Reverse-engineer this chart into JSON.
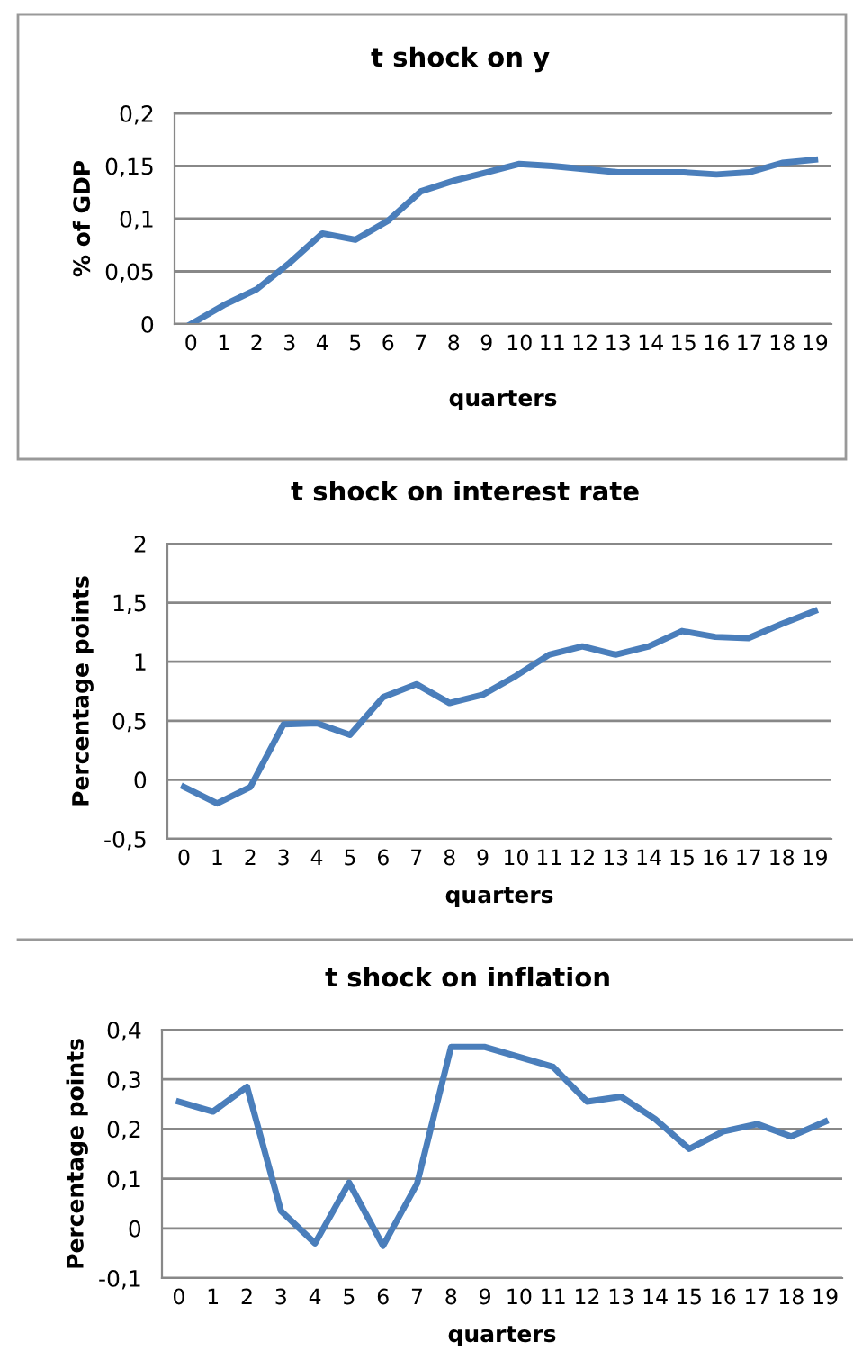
{
  "chart_data": [
    {
      "type": "line",
      "title": "t shock on y",
      "xlabel": "quarters",
      "ylabel": "% of GDP",
      "categories": [
        "0",
        "1",
        "2",
        "3",
        "4",
        "5",
        "6",
        "7",
        "8",
        "9",
        "10",
        "11",
        "12",
        "13",
        "14",
        "15",
        "16",
        "17",
        "18",
        "19"
      ],
      "series": [
        {
          "color": "#4a7ebb",
          "values": [
            0,
            0.018,
            0.033,
            0.058,
            0.086,
            0.08,
            0.098,
            0.126,
            0.136,
            0.144,
            0.152,
            0.15,
            0.147,
            0.144,
            0.144,
            0.144,
            0.142,
            0.144,
            0.153,
            0.156
          ]
        }
      ],
      "ylim": [
        0,
        0.2
      ],
      "yticks": [
        0,
        {
          "value": 0.05,
          "label": "0,05"
        },
        {
          "value": 0.1,
          "label": "0,1"
        },
        {
          "value": 0.15,
          "label": "0,15"
        },
        {
          "value": 0.2,
          "label": "0,2"
        }
      ],
      "grid": "y",
      "marker": "none",
      "line_style": "solid"
    },
    {
      "type": "line",
      "title": "t shock on interest rate",
      "xlabel": "quarters",
      "ylabel": "Percentage points",
      "categories": [
        "0",
        "1",
        "2",
        "3",
        "4",
        "5",
        "6",
        "7",
        "8",
        "9",
        "10",
        "11",
        "12",
        "13",
        "14",
        "15",
        "16",
        "17",
        "18",
        "19"
      ],
      "series": [
        {
          "color": "#4a7ebb",
          "values": [
            -0.06,
            -0.2,
            -0.06,
            0.47,
            0.48,
            0.38,
            0.7,
            0.81,
            0.65,
            0.72,
            0.88,
            1.06,
            1.13,
            1.06,
            1.13,
            1.26,
            1.21,
            1.2,
            1.32,
            1.43
          ]
        }
      ],
      "ylim": [
        -0.5,
        2
      ],
      "yticks": [
        {
          "value": -0.5,
          "label": "-0,5"
        },
        0,
        {
          "value": 0.5,
          "label": "0,5"
        },
        1,
        {
          "value": 1.5,
          "label": "1,5"
        },
        2
      ],
      "grid": "y",
      "marker": "none",
      "line_style": "solid"
    },
    {
      "type": "line",
      "title": "t shock on inflation",
      "xlabel": "quarters",
      "ylabel": "Percentage points",
      "categories": [
        "0",
        "1",
        "2",
        "3",
        "4",
        "5",
        "6",
        "7",
        "8",
        "9",
        "10",
        "11",
        "12",
        "13",
        "14",
        "15",
        "16",
        "17",
        "18",
        "19"
      ],
      "series": [
        {
          "color": "#4a7ebb",
          "values": [
            0.255,
            0.235,
            0.285,
            0.035,
            -0.03,
            0.092,
            -0.035,
            0.09,
            0.365,
            0.365,
            0.345,
            0.325,
            0.255,
            0.265,
            0.22,
            0.16,
            0.195,
            0.21,
            0.185,
            0.215
          ]
        }
      ],
      "ylim": [
        -0.1,
        0.4
      ],
      "yticks": [
        {
          "value": -0.1,
          "label": "-0,1"
        },
        0,
        {
          "value": 0.1,
          "label": "0,1"
        },
        {
          "value": 0.2,
          "label": "0,2"
        },
        {
          "value": 0.3,
          "label": "0,3"
        },
        {
          "value": 0.4,
          "label": "0,4"
        }
      ],
      "grid": "y",
      "marker": "none",
      "line_style": "solid"
    }
  ]
}
